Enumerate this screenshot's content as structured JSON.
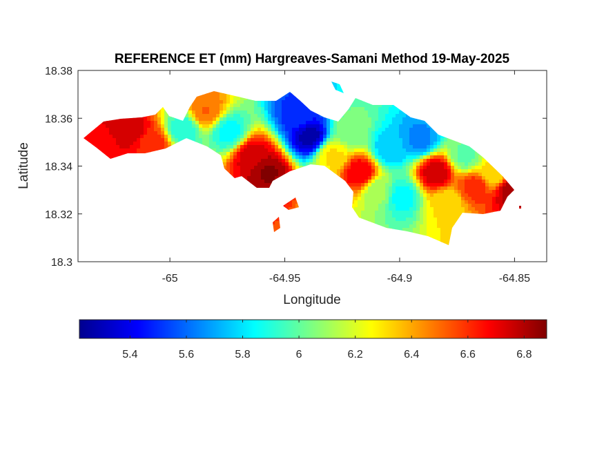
{
  "chart_data": {
    "type": "heatmap",
    "title": "REFERENCE ET (mm) Hargreaves-Samani Method  19-May-2025",
    "xlabel": "Longitude",
    "ylabel": "Latitude",
    "xlim": [
      -65.04,
      -64.836
    ],
    "ylim": [
      18.3,
      18.38
    ],
    "xticks": [
      -65.0,
      -64.95,
      -64.9,
      -64.85
    ],
    "xtick_labels": [
      "-65",
      "-64.95",
      "-64.9",
      "-64.85"
    ],
    "yticks": [
      18.3,
      18.32,
      18.34,
      18.36,
      18.38
    ],
    "ytick_labels": [
      "18.3",
      "18.32",
      "18.34",
      "18.36",
      "18.38"
    ],
    "grid": false,
    "colormap": "jet",
    "colorbar": {
      "location": "bottom",
      "clim": [
        5.22,
        6.88
      ],
      "ticks": [
        5.4,
        5.6,
        5.8,
        6.0,
        6.2,
        6.4,
        6.6,
        6.8
      ],
      "tick_labels": [
        "5.4",
        "5.6",
        "5.8",
        "6",
        "6.2",
        "6.4",
        "6.6",
        "6.8"
      ]
    },
    "estimated_field_samples": [
      {
        "lon": -65.03,
        "lat": 18.35,
        "value": 6.7
      },
      {
        "lon": -65.018,
        "lat": 18.356,
        "value": 6.75
      },
      {
        "lon": -65.008,
        "lat": 18.35,
        "value": 6.6
      },
      {
        "lon": -64.995,
        "lat": 18.356,
        "value": 5.9
      },
      {
        "lon": -64.985,
        "lat": 18.364,
        "value": 6.5
      },
      {
        "lon": -64.975,
        "lat": 18.355,
        "value": 5.85
      },
      {
        "lon": -64.965,
        "lat": 18.345,
        "value": 6.75
      },
      {
        "lon": -64.958,
        "lat": 18.338,
        "value": 6.85
      },
      {
        "lon": -64.94,
        "lat": 18.353,
        "value": 5.3
      },
      {
        "lon": -64.945,
        "lat": 18.362,
        "value": 5.5
      },
      {
        "lon": -64.93,
        "lat": 18.345,
        "value": 6.3
      },
      {
        "lon": -64.922,
        "lat": 18.355,
        "value": 6.05
      },
      {
        "lon": -64.918,
        "lat": 18.338,
        "value": 6.7
      },
      {
        "lon": -64.91,
        "lat": 18.33,
        "value": 6.1
      },
      {
        "lon": -64.905,
        "lat": 18.348,
        "value": 5.75
      },
      {
        "lon": -64.9,
        "lat": 18.328,
        "value": 5.85
      },
      {
        "lon": -64.892,
        "lat": 18.352,
        "value": 5.65
      },
      {
        "lon": -64.885,
        "lat": 18.338,
        "value": 6.75
      },
      {
        "lon": -64.88,
        "lat": 18.325,
        "value": 6.3
      },
      {
        "lon": -64.872,
        "lat": 18.345,
        "value": 6.0
      },
      {
        "lon": -64.868,
        "lat": 18.332,
        "value": 6.6
      },
      {
        "lon": -64.86,
        "lat": 18.338,
        "value": 6.3
      },
      {
        "lon": -64.852,
        "lat": 18.33,
        "value": 6.8
      }
    ]
  }
}
